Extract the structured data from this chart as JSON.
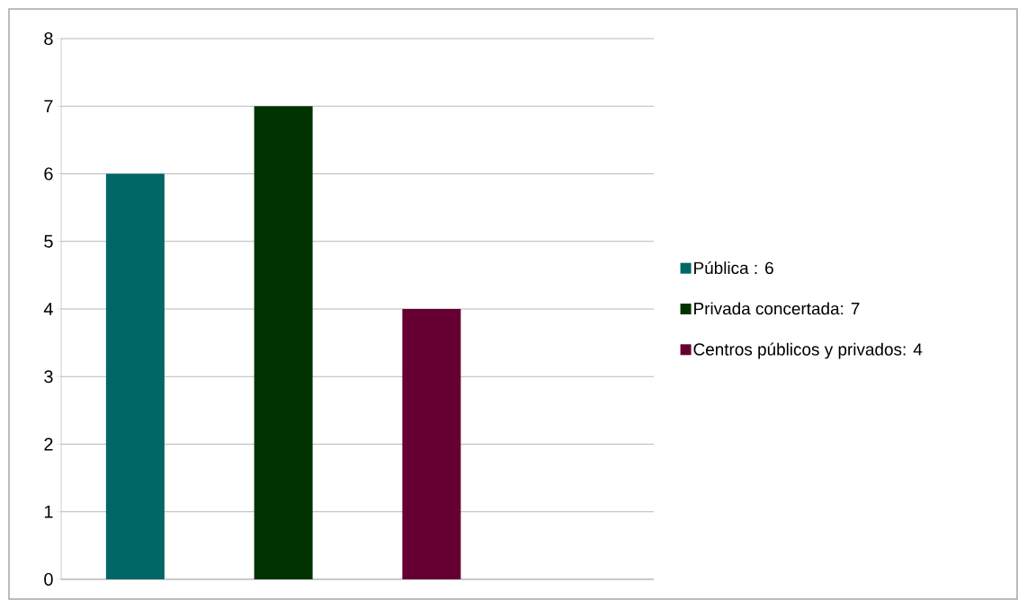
{
  "chart_data": {
    "type": "bar",
    "categories": [
      null,
      null,
      null,
      null
    ],
    "series": [
      {
        "name": "Pública : 6",
        "color": "#006666",
        "values": [
          6,
          null,
          null,
          null
        ]
      },
      {
        "name": "Privada concertada: 7",
        "color": "#003300",
        "values": [
          null,
          7,
          null,
          null
        ]
      },
      {
        "name": "Centros públicos y privados: 4",
        "color": "#660033",
        "values": [
          null,
          null,
          4,
          null
        ]
      }
    ],
    "ylim": [
      0,
      8
    ],
    "yticks": [
      0,
      1,
      2,
      3,
      4,
      5,
      6,
      7,
      8
    ],
    "grid": "y",
    "legend": "right"
  }
}
